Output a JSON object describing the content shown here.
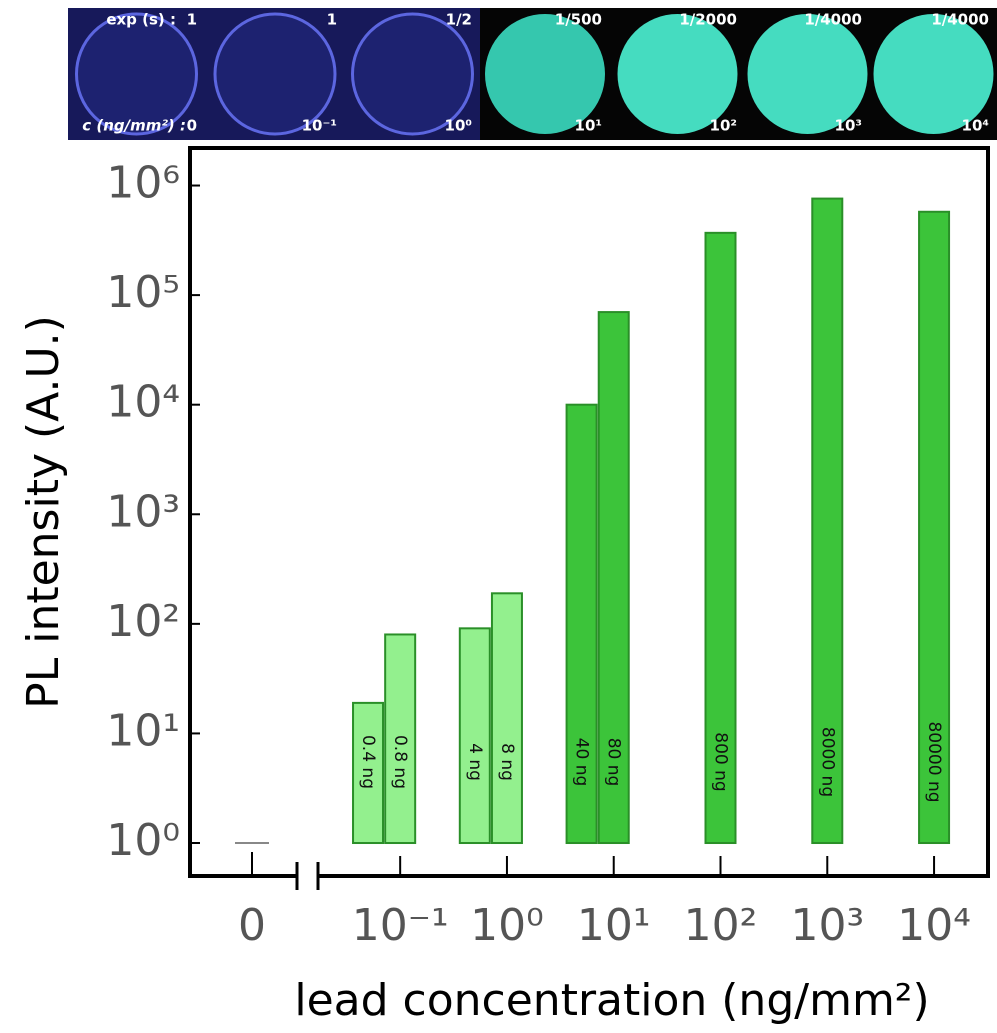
{
  "chart_data": {
    "type": "bar",
    "photos": {
      "exp_label": "exp (s) :",
      "exposures": [
        "1",
        "1",
        "1/2",
        "1/500",
        "1/2000",
        "1/4000",
        "1/4000"
      ],
      "conc_label": "c (ng/mm²) :",
      "concentrations": [
        "0",
        "10⁻¹",
        "10⁰",
        "10¹",
        "10²",
        "10³",
        "10⁴"
      ]
    },
    "y_label": "PL intensity (A.U.)",
    "x_label": "lead concentration (ng/mm²)",
    "y_log": true,
    "x_log": true,
    "ylim": [
      0.5,
      2200000
    ],
    "yticks": [
      {
        "value": 1,
        "label": "10⁰"
      },
      {
        "value": 10,
        "label": "10¹"
      },
      {
        "value": 100,
        "label": "10²"
      },
      {
        "value": 1000,
        "label": "10³"
      },
      {
        "value": 10000,
        "label": "10⁴"
      },
      {
        "value": 100000,
        "label": "10⁵"
      },
      {
        "value": 1000000,
        "label": "10⁶"
      }
    ],
    "xlim": [
      0.017,
      32000
    ],
    "xticks": [
      {
        "value": 0.1,
        "label": "10⁻¹"
      },
      {
        "value": 1,
        "label": "10⁰"
      },
      {
        "value": 10,
        "label": "10¹"
      },
      {
        "value": 100,
        "label": "10²"
      },
      {
        "value": 1000,
        "label": "10³"
      },
      {
        "value": 10000,
        "label": "10⁴"
      }
    ],
    "zero_tick": {
      "value": 1,
      "label": "0"
    },
    "bar_base": 1,
    "x": [
      0.05,
      0.1,
      0.5,
      1,
      5,
      10,
      100,
      1000,
      10000
    ],
    "values": [
      19,
      80,
      91,
      190,
      10000,
      70000,
      370000,
      760000,
      576000
    ],
    "bar_labels": [
      "0.4 ng",
      "0.8 ng",
      "4 ng",
      "8 ng",
      "40 ng",
      "80 ng",
      "800 ng",
      "8000 ng",
      "80000 ng"
    ],
    "colors": [
      "#93f08e",
      "#93f08e",
      "#93f08e",
      "#93f08e",
      "#3cc43a",
      "#3cc43a",
      "#3cc43a",
      "#3cc43a",
      "#3cc43a"
    ]
  }
}
